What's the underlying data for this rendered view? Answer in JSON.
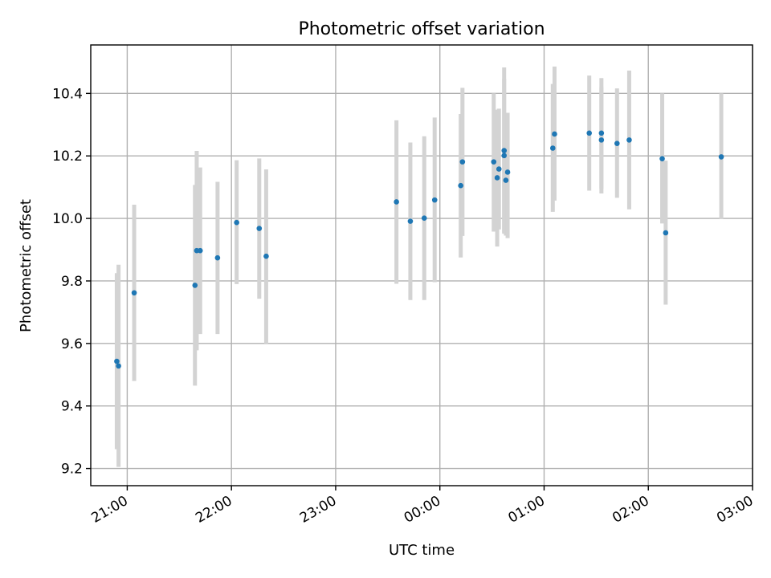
{
  "chart_data": {
    "type": "scatter",
    "title": "Photometric offset variation",
    "xlabel": "UTC time",
    "ylabel": "Photometric offset",
    "xlim": [
      "20:39",
      "03:00"
    ],
    "ylim": [
      9.145,
      10.555
    ],
    "grid": true,
    "x_ticks": [
      "21:00",
      "22:00",
      "23:00",
      "00:00",
      "01:00",
      "02:00",
      "03:00"
    ],
    "y_ticks": [
      "9.2",
      "9.4",
      "9.6",
      "9.8",
      "10.0",
      "10.2",
      "10.4"
    ],
    "colors": {
      "point": "#1f77b4",
      "error_bar": "#d3d3d3",
      "grid": "#b0b0b0"
    },
    "points": [
      {
        "x": "20:54",
        "y": 9.543,
        "y_low": 9.262,
        "y_high": 9.825
      },
      {
        "x": "20:55",
        "y": 9.528,
        "y_low": 9.205,
        "y_high": 9.852
      },
      {
        "x": "21:04",
        "y": 9.762,
        "y_low": 9.48,
        "y_high": 10.044
      },
      {
        "x": "21:39",
        "y": 9.786,
        "y_low": 9.465,
        "y_high": 10.107
      },
      {
        "x": "21:40",
        "y": 9.897,
        "y_low": 9.578,
        "y_high": 10.216
      },
      {
        "x": "21:42",
        "y": 9.897,
        "y_low": 9.63,
        "y_high": 10.163
      },
      {
        "x": "21:52",
        "y": 9.874,
        "y_low": 9.63,
        "y_high": 10.117
      },
      {
        "x": "22:03",
        "y": 9.987,
        "y_low": 9.79,
        "y_high": 10.186
      },
      {
        "x": "22:16",
        "y": 9.968,
        "y_low": 9.743,
        "y_high": 10.192
      },
      {
        "x": "22:20",
        "y": 9.879,
        "y_low": 9.6,
        "y_high": 10.157
      },
      {
        "x": "23:35",
        "y": 10.053,
        "y_low": 9.791,
        "y_high": 10.314
      },
      {
        "x": "23:43",
        "y": 9.991,
        "y_low": 9.739,
        "y_high": 10.243
      },
      {
        "x": "23:51",
        "y": 10.001,
        "y_low": 9.739,
        "y_high": 10.263
      },
      {
        "x": "23:57",
        "y": 10.059,
        "y_low": 9.796,
        "y_high": 10.323
      },
      {
        "x": "00:12",
        "y": 10.105,
        "y_low": 9.875,
        "y_high": 10.334
      },
      {
        "x": "00:13",
        "y": 10.181,
        "y_low": 9.944,
        "y_high": 10.418
      },
      {
        "x": "00:31",
        "y": 10.181,
        "y_low": 9.958,
        "y_high": 10.4
      },
      {
        "x": "00:33",
        "y": 10.13,
        "y_low": 9.91,
        "y_high": 10.348
      },
      {
        "x": "00:34",
        "y": 10.158,
        "y_low": 9.965,
        "y_high": 10.351
      },
      {
        "x": "00:37",
        "y": 10.217,
        "y_low": 9.951,
        "y_high": 10.483
      },
      {
        "x": "00:37",
        "y": 10.201,
        "y_low": 9.955,
        "y_high": 10.447
      },
      {
        "x": "00:38",
        "y": 10.122,
        "y_low": 9.945,
        "y_high": 10.3
      },
      {
        "x": "00:39",
        "y": 10.148,
        "y_low": 9.937,
        "y_high": 10.338
      },
      {
        "x": "01:05",
        "y": 10.225,
        "y_low": 10.021,
        "y_high": 10.43
      },
      {
        "x": "01:06",
        "y": 10.27,
        "y_low": 10.057,
        "y_high": 10.486
      },
      {
        "x": "01:26",
        "y": 10.273,
        "y_low": 10.089,
        "y_high": 10.457
      },
      {
        "x": "01:33",
        "y": 10.273,
        "y_low": 10.096,
        "y_high": 10.449
      },
      {
        "x": "01:33",
        "y": 10.251,
        "y_low": 10.08,
        "y_high": 10.42
      },
      {
        "x": "01:42",
        "y": 10.24,
        "y_low": 10.066,
        "y_high": 10.416
      },
      {
        "x": "01:49",
        "y": 10.251,
        "y_low": 10.029,
        "y_high": 10.473
      },
      {
        "x": "02:08",
        "y": 10.191,
        "y_low": 9.984,
        "y_high": 10.4
      },
      {
        "x": "02:10",
        "y": 9.954,
        "y_low": 9.724,
        "y_high": 10.185
      },
      {
        "x": "02:42",
        "y": 10.197,
        "y_low": 9.998,
        "y_high": 10.4
      }
    ]
  }
}
